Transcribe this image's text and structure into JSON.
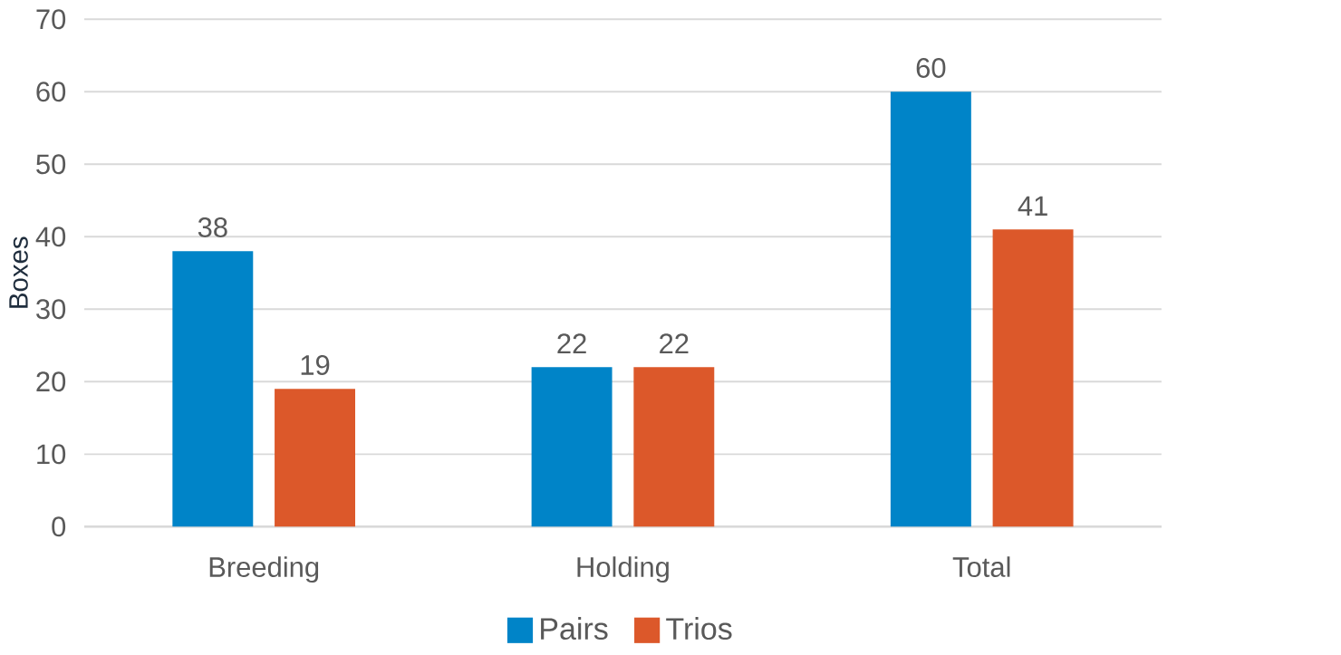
{
  "chart_data": {
    "type": "bar",
    "ylabel": "Boxes",
    "categories": [
      "Breeding",
      "Holding",
      "Total"
    ],
    "series": [
      {
        "name": "Pairs",
        "color": "#0084c8",
        "values": [
          38,
          22,
          60
        ]
      },
      {
        "name": "Trios",
        "color": "#dc582a",
        "values": [
          19,
          22,
          41
        ]
      }
    ],
    "ylim": [
      0,
      70
    ],
    "yticks": [
      0,
      10,
      20,
      30,
      40,
      50,
      60,
      70
    ],
    "grid": "y",
    "legend": "bottom",
    "data_labels": true
  }
}
